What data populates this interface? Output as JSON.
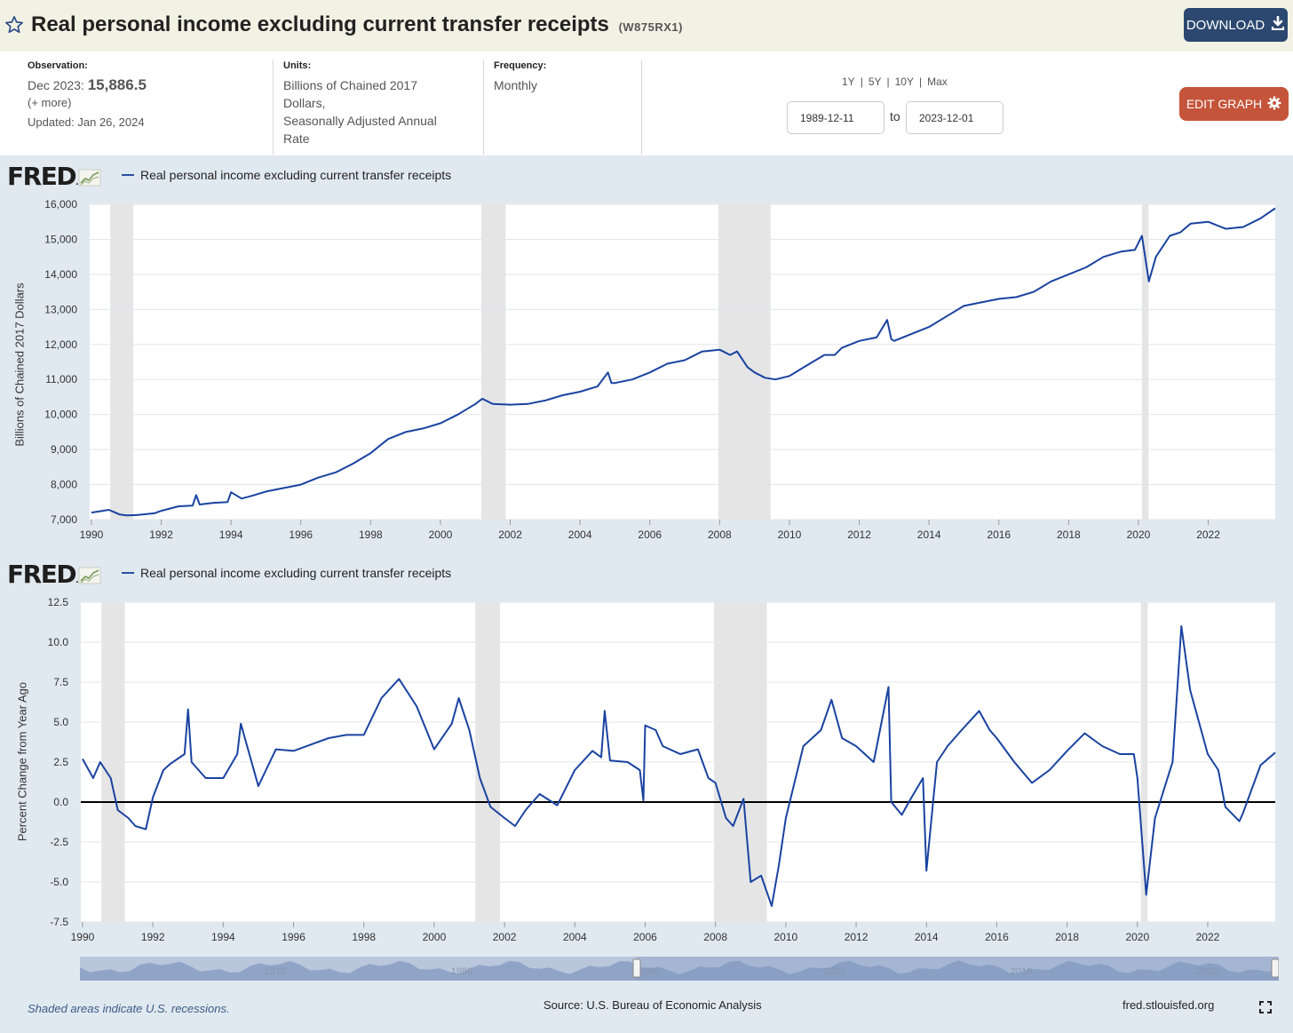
{
  "header": {
    "title": "Real personal income excluding current transfer receipts",
    "series_id": "(W875RX1)",
    "download_label": "DOWNLOAD"
  },
  "meta": {
    "observation_heading": "Observation:",
    "observation_date": "Dec 2023:",
    "observation_value": "15,886.5",
    "more_link": "(+ more)",
    "updated": "Updated: Jan 26, 2024",
    "units_heading": "Units:",
    "units_line1": "Billions of Chained 2017",
    "units_line2": "Dollars,",
    "units_line3": "Seasonally Adjusted Annual",
    "units_line4": "Rate",
    "frequency_heading": "Frequency:",
    "frequency": "Monthly"
  },
  "range": {
    "links": [
      "1Y",
      "5Y",
      "10Y",
      "Max"
    ],
    "start": "1989-12-11",
    "to_label": "to",
    "end": "2023-12-01",
    "edit_label": "EDIT GRAPH"
  },
  "icons": {
    "star": "star-icon",
    "download": "download-icon",
    "gear": "gear-icon",
    "fullscreen": "fullscreen-icon",
    "fred_logo": "fred-logo-icon"
  },
  "colors": {
    "series": "#1a43a0",
    "recession": "#e5e5e5",
    "download_btn": "#2c4870",
    "edit_btn": "#c4543a",
    "page_bg": "#e1e9f0"
  },
  "chart_data": [
    {
      "type": "line",
      "legend": "Real personal income excluding current transfer receipts",
      "ylabel": "Billions of Chained 2017 Dollars",
      "ylim": [
        7000,
        16000
      ],
      "yticks": [
        "7,000",
        "8,000",
        "9,000",
        "10,000",
        "11,000",
        "12,000",
        "13,000",
        "14,000",
        "15,000",
        "16,000"
      ],
      "xlim": [
        1989.95,
        2023.92
      ],
      "xticks": [
        "1990",
        "1992",
        "1994",
        "1996",
        "1998",
        "2000",
        "2002",
        "2004",
        "2006",
        "2008",
        "2010",
        "2012",
        "2014",
        "2016",
        "2018",
        "2020",
        "2022"
      ],
      "recessions": [
        [
          1990.54,
          1991.2
        ],
        [
          2001.17,
          2001.87
        ],
        [
          2007.96,
          2009.46
        ],
        [
          2020.1,
          2020.29
        ]
      ],
      "x": [
        1990.0,
        1990.5,
        1990.8,
        1991.0,
        1991.3,
        1991.8,
        1992.0,
        1992.5,
        1992.9,
        1993.0,
        1993.1,
        1993.5,
        1993.9,
        1994.0,
        1994.3,
        1994.6,
        1995.0,
        1995.5,
        1996.0,
        1996.5,
        1997.0,
        1997.5,
        1998.0,
        1998.5,
        1999.0,
        1999.5,
        2000.0,
        2000.5,
        2001.0,
        2001.2,
        2001.5,
        2002.0,
        2002.5,
        2003.0,
        2003.5,
        2004.0,
        2004.5,
        2004.8,
        2004.9,
        2005.0,
        2005.5,
        2006.0,
        2006.5,
        2007.0,
        2007.5,
        2008.0,
        2008.3,
        2008.5,
        2008.8,
        2009.0,
        2009.3,
        2009.6,
        2010.0,
        2010.5,
        2011.0,
        2011.3,
        2011.5,
        2012.0,
        2012.5,
        2012.8,
        2012.92,
        2013.0,
        2013.5,
        2014.0,
        2014.5,
        2015.0,
        2015.5,
        2016.0,
        2016.5,
        2017.0,
        2017.5,
        2018.0,
        2018.5,
        2019.0,
        2019.5,
        2019.9,
        2020.1,
        2020.3,
        2020.5,
        2020.9,
        2021.2,
        2021.5,
        2022.0,
        2022.5,
        2023.0,
        2023.5,
        2023.92
      ],
      "y": [
        7200,
        7280,
        7150,
        7120,
        7130,
        7180,
        7250,
        7380,
        7400,
        7700,
        7430,
        7480,
        7500,
        7780,
        7600,
        7680,
        7800,
        7900,
        8000,
        8200,
        8350,
        8600,
        8900,
        9300,
        9500,
        9600,
        9750,
        10000,
        10300,
        10450,
        10300,
        10280,
        10300,
        10400,
        10550,
        10650,
        10800,
        11200,
        10900,
        10900,
        11000,
        11200,
        11450,
        11550,
        11800,
        11850,
        11700,
        11800,
        11350,
        11200,
        11050,
        11000,
        11100,
        11400,
        11700,
        11700,
        11900,
        12100,
        12200,
        12700,
        12150,
        12100,
        12300,
        12500,
        12800,
        13100,
        13200,
        13300,
        13350,
        13500,
        13800,
        14000,
        14200,
        14500,
        14650,
        14700,
        15100,
        13800,
        14500,
        15100,
        15200,
        15450,
        15500,
        15300,
        15350,
        15600,
        15886.5
      ]
    },
    {
      "type": "line",
      "legend": "Real personal income excluding current transfer receipts",
      "ylabel": "Percent Change from Year Ago",
      "ylim": [
        -7.5,
        12.5
      ],
      "yticks": [
        "-7.5",
        "-5.0",
        "-2.5",
        "0.0",
        "2.5",
        "5.0",
        "7.5",
        "10.0",
        "12.5"
      ],
      "xlim": [
        1989.95,
        2023.92
      ],
      "xticks": [
        "1990",
        "1992",
        "1994",
        "1996",
        "1998",
        "2000",
        "2002",
        "2004",
        "2006",
        "2008",
        "2010",
        "2012",
        "2014",
        "2016",
        "2018",
        "2020",
        "2022"
      ],
      "recessions": [
        [
          1990.54,
          1991.2
        ],
        [
          2001.17,
          2001.87
        ],
        [
          2007.96,
          2009.46
        ],
        [
          2020.1,
          2020.29
        ]
      ],
      "x": [
        1990.0,
        1990.3,
        1990.5,
        1990.8,
        1991.0,
        1991.3,
        1991.5,
        1991.8,
        1992.0,
        1992.3,
        1992.5,
        1992.9,
        1993.0,
        1993.1,
        1993.5,
        1994.0,
        1994.4,
        1994.5,
        1995.0,
        1995.5,
        1996.0,
        1996.5,
        1997.0,
        1997.5,
        1998.0,
        1998.5,
        1999.0,
        1999.5,
        2000.0,
        2000.5,
        2000.7,
        2001.0,
        2001.3,
        2001.6,
        2002.0,
        2002.3,
        2002.6,
        2003.0,
        2003.5,
        2004.0,
        2004.5,
        2004.75,
        2004.85,
        2005.0,
        2005.5,
        2005.85,
        2005.95,
        2006.0,
        2006.3,
        2006.5,
        2007.0,
        2007.5,
        2007.8,
        2008.0,
        2008.3,
        2008.5,
        2008.8,
        2009.0,
        2009.3,
        2009.6,
        2009.8,
        2010.0,
        2010.5,
        2011.0,
        2011.3,
        2011.6,
        2012.0,
        2012.5,
        2012.92,
        2013.0,
        2013.3,
        2013.5,
        2013.9,
        2014.0,
        2014.3,
        2014.6,
        2015.0,
        2015.5,
        2015.8,
        2016.0,
        2016.5,
        2017.0,
        2017.5,
        2018.0,
        2018.5,
        2019.0,
        2019.5,
        2019.9,
        2020.0,
        2020.25,
        2020.5,
        2020.9,
        2021.0,
        2021.25,
        2021.5,
        2022.0,
        2022.3,
        2022.5,
        2022.9,
        2023.0,
        2023.5,
        2023.92
      ],
      "y": [
        2.7,
        1.5,
        2.5,
        1.5,
        -0.5,
        -1.0,
        -1.5,
        -1.7,
        0.3,
        2.0,
        2.4,
        3.0,
        5.8,
        2.5,
        1.5,
        1.5,
        3.0,
        4.9,
        1.0,
        3.3,
        3.2,
        3.6,
        4.0,
        4.2,
        4.2,
        6.5,
        7.7,
        6.0,
        3.3,
        4.9,
        6.5,
        4.5,
        1.5,
        -0.3,
        -1.0,
        -1.5,
        -0.5,
        0.5,
        -0.2,
        2.0,
        3.2,
        2.8,
        5.7,
        2.6,
        2.5,
        2.0,
        0.1,
        4.8,
        4.5,
        3.5,
        3.0,
        3.3,
        1.5,
        1.2,
        -1.0,
        -1.5,
        0.2,
        -5.0,
        -4.6,
        -6.5,
        -4.0,
        -1.0,
        3.5,
        4.5,
        6.4,
        4.0,
        3.5,
        2.5,
        7.2,
        0.0,
        -0.8,
        0.0,
        1.5,
        -4.3,
        2.5,
        3.5,
        4.5,
        5.7,
        4.5,
        4.0,
        2.5,
        1.2,
        2.0,
        3.2,
        4.3,
        3.5,
        3.0,
        3.0,
        1.5,
        -5.8,
        -1.0,
        1.8,
        2.5,
        11.0,
        7.0,
        3.0,
        2.0,
        -0.3,
        -1.2,
        -0.7,
        2.3,
        3.1
      ]
    }
  ],
  "navigator": {
    "labels": [
      "1970",
      "1980",
      "1990",
      "2000",
      "2010",
      "2020"
    ]
  },
  "footer": {
    "note": "Shaded areas indicate U.S. recessions.",
    "source": "Source: U.S. Bureau of Economic Analysis",
    "site": "fred.stlouisfed.org"
  }
}
